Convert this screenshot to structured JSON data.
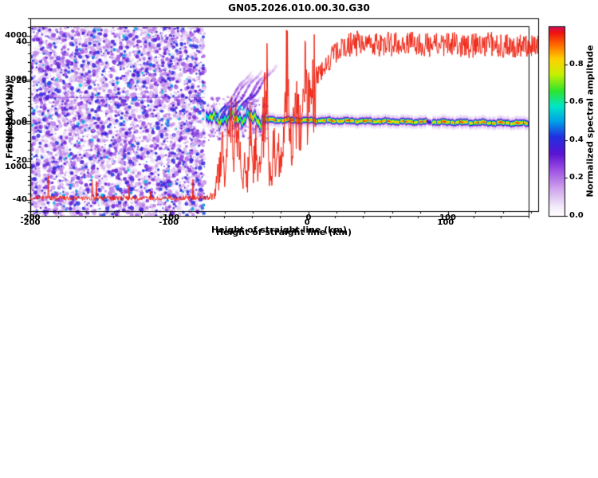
{
  "title": "GN05.2026.010.00.30.G30",
  "chart_data": [
    {
      "type": "heatmap",
      "title": "GN05.2026.010.00.30.G30",
      "xlabel": "Height of straight line (km)",
      "ylabel": "Frequency (Hz)",
      "xlim": [
        -200,
        160
      ],
      "ylim": [
        -48,
        48
      ],
      "xticks": [
        -200,
        -100,
        0,
        100
      ],
      "yticks": [
        -40,
        -20,
        0,
        20,
        40
      ],
      "xminor": 20,
      "yminor": 10,
      "colorbar": {
        "label": "Normalized spectral amplitude",
        "ticks": [
          0.0,
          0.2,
          0.4,
          0.6,
          0.8
        ],
        "lim": [
          0,
          1
        ]
      },
      "colormap": [
        {
          "v": 0.0,
          "c": "#ffffff"
        },
        {
          "v": 0.05,
          "c": "#f3ebfa"
        },
        {
          "v": 0.15,
          "c": "#cda0ec"
        },
        {
          "v": 0.25,
          "c": "#9a4ce2"
        },
        {
          "v": 0.33,
          "c": "#5a14d2"
        },
        {
          "v": 0.42,
          "c": "#2030e0"
        },
        {
          "v": 0.5,
          "c": "#00a0e8"
        },
        {
          "v": 0.58,
          "c": "#00e6c8"
        },
        {
          "v": 0.66,
          "c": "#2ee42e"
        },
        {
          "v": 0.75,
          "c": "#c8f000"
        },
        {
          "v": 0.83,
          "c": "#ffd000"
        },
        {
          "v": 0.9,
          "c": "#ff7000"
        },
        {
          "v": 0.97,
          "c": "#ee1010"
        },
        {
          "v": 1.0,
          "c": "#d01060"
        }
      ],
      "noise_region": {
        "x_end": -74,
        "value_range": [
          0.05,
          0.5
        ]
      },
      "artifact_line_hz": 12,
      "signal": {
        "x_start": -73,
        "turbulent_until": -30,
        "center_base": [
          [
            -73,
            1.2
          ],
          [
            -45,
            2.0
          ],
          [
            -30,
            0.8
          ],
          [
            40,
            0.2
          ],
          [
            160,
            -0.9
          ]
        ],
        "wiggle_amp_turbulent": 3.2,
        "wiggle_amp_stable": 0.5,
        "band_sigma_turbulent": 1.8,
        "band_sigma_stable": 1.0,
        "peak_turbulent": 0.92,
        "peak_stable": 0.95,
        "streaks": [
          [
            -66,
            1
          ],
          [
            -62,
            2
          ],
          [
            -57,
            3
          ],
          [
            -51,
            4
          ],
          [
            -46,
            6
          ]
        ]
      }
    },
    {
      "type": "line",
      "xlabel": "Height of straight line (km)",
      "ylabel": "SNR (10 * v/v)",
      "xlim": [
        -200,
        165
      ],
      "ylim": [
        0,
        4400
      ],
      "xticks": [
        -200,
        -100,
        0,
        100
      ],
      "yticks": [
        1000,
        2000,
        3000,
        4000
      ],
      "xminor": 20,
      "yminor": 200,
      "color": "#ee2211",
      "envelope": [
        [
          -200,
          300
        ],
        [
          -120,
          295
        ],
        [
          -80,
          300
        ],
        [
          -72,
          310
        ],
        [
          -68,
          420
        ],
        [
          -64,
          900
        ],
        [
          -62,
          1600
        ],
        [
          -60,
          800
        ],
        [
          -58,
          1900
        ],
        [
          -56,
          2300
        ],
        [
          -54,
          1100
        ],
        [
          -52,
          2400
        ],
        [
          -50,
          1500
        ],
        [
          -48,
          600
        ],
        [
          -46,
          1200
        ],
        [
          -44,
          700
        ],
        [
          -42,
          1800
        ],
        [
          -40,
          900
        ],
        [
          -38,
          1400
        ],
        [
          -36,
          800
        ],
        [
          -34,
          1300
        ],
        [
          -32,
          2200
        ],
        [
          -30,
          3600
        ],
        [
          -29,
          1200
        ],
        [
          -27,
          800
        ],
        [
          -25,
          1500
        ],
        [
          -23,
          900
        ],
        [
          -21,
          1400
        ],
        [
          -19,
          1000
        ],
        [
          -17,
          2000
        ],
        [
          -15,
          3700
        ],
        [
          -14,
          1800
        ],
        [
          -12,
          1400
        ],
        [
          -10,
          1900
        ],
        [
          -8,
          2300
        ],
        [
          -6,
          2000
        ],
        [
          -4,
          2500
        ],
        [
          -2,
          2800
        ],
        [
          0,
          2600
        ],
        [
          3,
          2900
        ],
        [
          6,
          3100
        ],
        [
          10,
          3250
        ],
        [
          15,
          3450
        ],
        [
          20,
          3600
        ],
        [
          25,
          3700
        ],
        [
          30,
          3800
        ],
        [
          40,
          3850
        ],
        [
          55,
          3800
        ],
        [
          70,
          3850
        ],
        [
          85,
          3780
        ],
        [
          100,
          3820
        ],
        [
          115,
          3760
        ],
        [
          130,
          3820
        ],
        [
          145,
          3740
        ],
        [
          160,
          3780
        ],
        [
          165,
          3750
        ]
      ],
      "noise": {
        "floor": 0.18,
        "transition": 0.45,
        "plateau": 0.075,
        "transition_range": [
          -70,
          5
        ]
      }
    }
  ]
}
